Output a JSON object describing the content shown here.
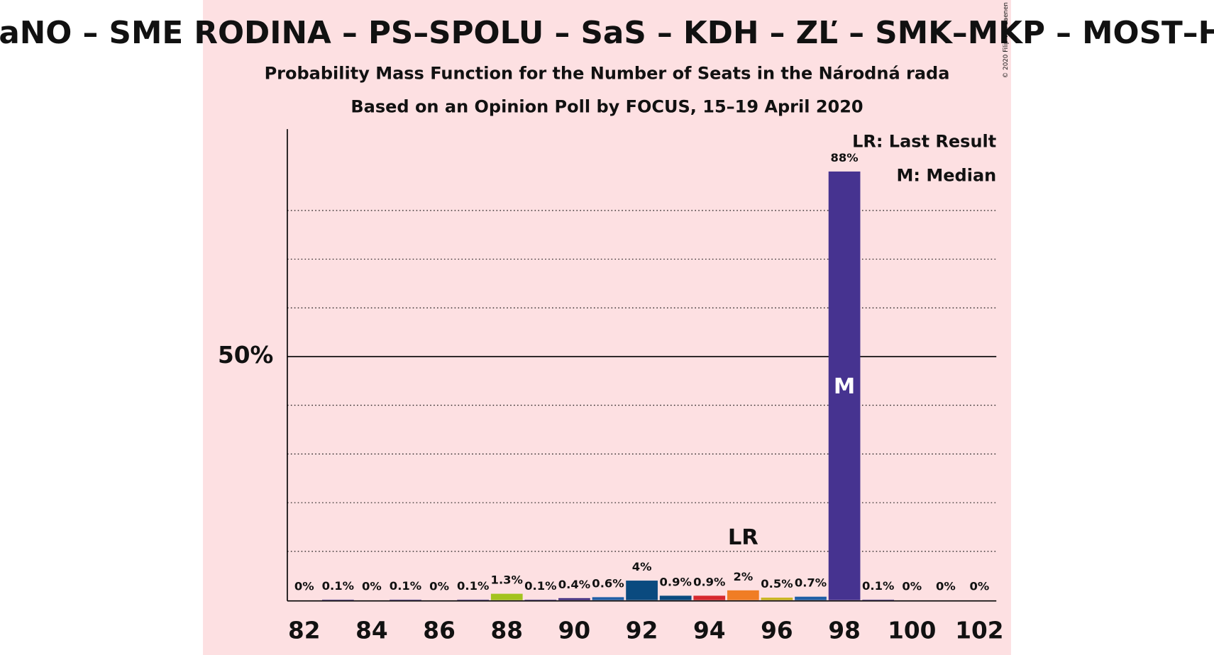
{
  "chart_data": {
    "type": "bar",
    "title": "OĽaNO – SME RODINA – PS–SPOLU – SaS – KDH – ZĽ – SMK–MKP – MOST–HÍD",
    "subtitle": [
      "Probability Mass Function for the Number of Seats in the Národná rada",
      "Based on an Opinion Poll by FOCUS, 15–19 April 2020"
    ],
    "copyright": "© 2020 Filip van Laenen",
    "x": [
      82,
      83,
      84,
      85,
      86,
      87,
      88,
      89,
      90,
      91,
      92,
      93,
      94,
      95,
      96,
      97,
      98,
      99,
      100,
      101,
      102
    ],
    "values": [
      0,
      0.1,
      0,
      0.1,
      0,
      0.1,
      1.3,
      0.1,
      0.4,
      0.6,
      4,
      0.9,
      0.9,
      2,
      0.5,
      0.7,
      88,
      0.1,
      0,
      0,
      0
    ],
    "value_labels": [
      "0%",
      "0.1%",
      "0%",
      "0.1%",
      "0%",
      "0.1%",
      "1.3%",
      "0.1%",
      "0.4%",
      "0.6%",
      "4%",
      "0.9%",
      "0.9%",
      "2%",
      "0.5%",
      "0.7%",
      "88%",
      "0.1%",
      "0%",
      "0%",
      "0%"
    ],
    "colors": [
      "#463390",
      "#463390",
      "#463390",
      "#463390",
      "#463390",
      "#463390",
      "#a3c31e",
      "#463390",
      "#402c80",
      "#1f5fa6",
      "#0a4a7f",
      "#0a4a7f",
      "#d7282e",
      "#f07d25",
      "#c8b51e",
      "#1f5fa6",
      "#463390",
      "#463390",
      "#463390",
      "#463390",
      "#463390"
    ],
    "xlim": [
      81.5,
      102.5
    ],
    "xticks": [
      82,
      84,
      86,
      88,
      90,
      92,
      94,
      96,
      98,
      100,
      102
    ],
    "ylim": [
      0,
      96.7
    ],
    "yticks": [
      {
        "value": 50,
        "label": "50%"
      }
    ],
    "minor_yticks": [
      10,
      20,
      30,
      40,
      60,
      70,
      80
    ],
    "annotations": [
      {
        "text": "LR",
        "x": 95
      },
      {
        "text": "M",
        "x": 98
      }
    ],
    "legend": [
      "LR: Last Result",
      "M: Median"
    ]
  }
}
